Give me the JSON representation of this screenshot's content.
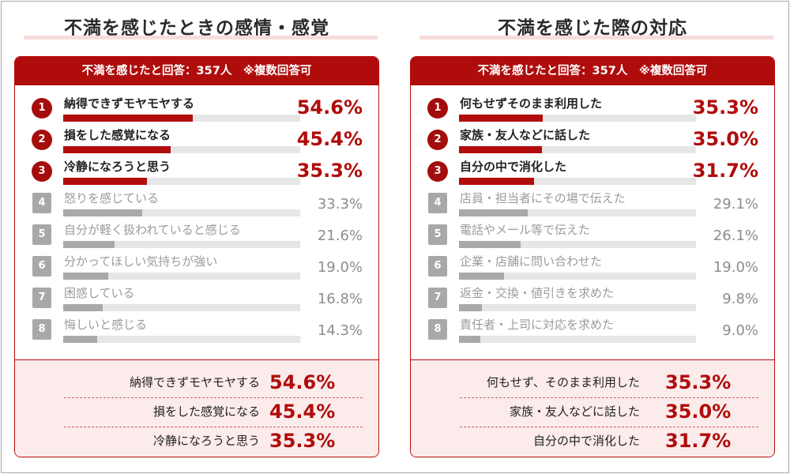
{
  "chart_data": [
    {
      "type": "bar",
      "title": "不満を感じたときの感情・感覚",
      "subtitle": "不満を感じたと回答：357人　※複数回答可",
      "categories": [
        "納得できずモヤモヤする",
        "損をした感覚になる",
        "冷静になろうと思う",
        "怒りを感じている",
        "自分が軽く扱われていると感じる",
        "分かってほしい気持ちが強い",
        "困惑している",
        "悔しいと感じる"
      ],
      "values": [
        54.6,
        45.4,
        35.3,
        33.3,
        21.6,
        19.0,
        16.8,
        14.3
      ],
      "value_labels": [
        "54.6%",
        "45.4%",
        "35.3%",
        "33.3%",
        "21.6%",
        "19.0%",
        "16.8%",
        "14.3%"
      ],
      "ranks": [
        "1",
        "2",
        "3",
        "4",
        "5",
        "6",
        "7",
        "8"
      ],
      "xlim": [
        0,
        100
      ],
      "highlight_count": 3,
      "summary": [
        {
          "label": "納得できずモヤモヤする",
          "value": "54.6%"
        },
        {
          "label": "損をした感覚になる",
          "value": "45.4%"
        },
        {
          "label": "冷静になろうと思う",
          "value": "35.3%"
        }
      ]
    },
    {
      "type": "bar",
      "title": "不満を感じた際の対応",
      "subtitle": "不満を感じたと回答：357人　※複数回答可",
      "categories": [
        "何もせずそのまま利用した",
        "家族・友人などに話した",
        "自分の中で消化した",
        "店員・担当者にその場で伝えた",
        "電話やメール等で伝えた",
        "企業・店舗に問い合わせた",
        "返金・交換・値引きを求めた",
        "責任者・上司に対応を求めた"
      ],
      "values": [
        35.3,
        35.0,
        31.7,
        29.1,
        26.1,
        19.0,
        9.8,
        9.0
      ],
      "value_labels": [
        "35.3%",
        "35.0%",
        "31.7%",
        "29.1%",
        "26.1%",
        "19.0%",
        "9.8%",
        "9.0%"
      ],
      "ranks": [
        "1",
        "2",
        "3",
        "4",
        "5",
        "6",
        "7",
        "8"
      ],
      "xlim": [
        0,
        100
      ],
      "highlight_count": 3,
      "summary": [
        {
          "label": "何もせず、そのまま利用した",
          "value": "35.3%"
        },
        {
          "label": "家族・友人などに話した",
          "value": "35.0%"
        },
        {
          "label": "自分の中で消化した",
          "value": "31.7%"
        }
      ]
    }
  ],
  "colors": {
    "accent": "#b00c0c",
    "muted": "#a9a9a9",
    "track": "#e6e6e6",
    "summary_bg": "#fcebeb"
  }
}
